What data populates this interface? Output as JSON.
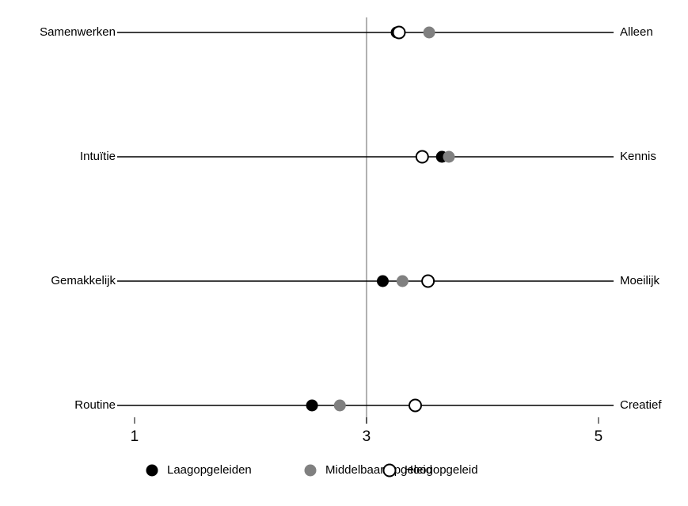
{
  "chart_data": {
    "type": "dotplot",
    "left_labels": [
      "Samenwerken",
      "Intuïtie",
      "Gemakkelijk",
      "Routine"
    ],
    "right_labels": [
      "Alleen",
      "Kennis",
      "Moeilijk",
      "Creatief"
    ],
    "series": [
      {
        "name": "Laagopgeleiden",
        "color": "#000000",
        "hollow": false,
        "values": [
          3.26,
          3.65,
          3.14,
          2.53
        ]
      },
      {
        "name": "Middelbaar opgeleid",
        "color": "#808080",
        "hollow": false,
        "values": [
          3.54,
          3.71,
          3.31,
          2.77
        ]
      },
      {
        "name": "Hoogopgeleid",
        "color": "#000000",
        "hollow": true,
        "values": [
          3.28,
          3.48,
          3.53,
          3.42
        ]
      }
    ],
    "xlim": [
      0.85,
      5.13
    ],
    "xticks": [
      1,
      3,
      5
    ],
    "reference_line": 3
  }
}
